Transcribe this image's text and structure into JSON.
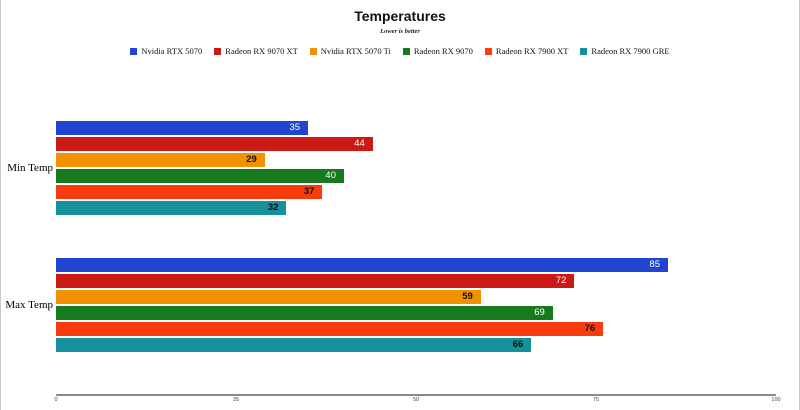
{
  "chart_data": {
    "type": "bar",
    "orientation": "horizontal",
    "title": "Temperatures",
    "subtitle": "Lower is better",
    "categories": [
      "Min Temp",
      "Max Temp"
    ],
    "series": [
      {
        "name": "Nvidia RTX 5070",
        "color": "#2145d0",
        "label_color": "#ffffff",
        "values": [
          35,
          85
        ]
      },
      {
        "name": "Radeon RX 9070 XT",
        "color": "#cb1916",
        "label_color": "#ffffff",
        "values": [
          44,
          72
        ]
      },
      {
        "name": "Nvidia RTX 5070 Ti",
        "color": "#f29200",
        "label_color": "#111111",
        "values": [
          29,
          59
        ]
      },
      {
        "name": "Radeon RX 9070",
        "color": "#187a1f",
        "label_color": "#ffffff",
        "values": [
          40,
          69
        ]
      },
      {
        "name": "Radeon RX 7900 XT",
        "color": "#f83c0d",
        "label_color": "#111111",
        "values": [
          37,
          76
        ]
      },
      {
        "name": "Radeon RX 7900 GRE",
        "color": "#16909a",
        "label_color": "#111111",
        "values": [
          32,
          66
        ]
      }
    ],
    "xlim": [
      0,
      100
    ],
    "x_ticks": [
      0,
      25,
      50,
      75,
      100
    ],
    "legend_position": "top",
    "grid": false,
    "axis_color": "#8a8a8a",
    "background_color": "#ffffff"
  }
}
